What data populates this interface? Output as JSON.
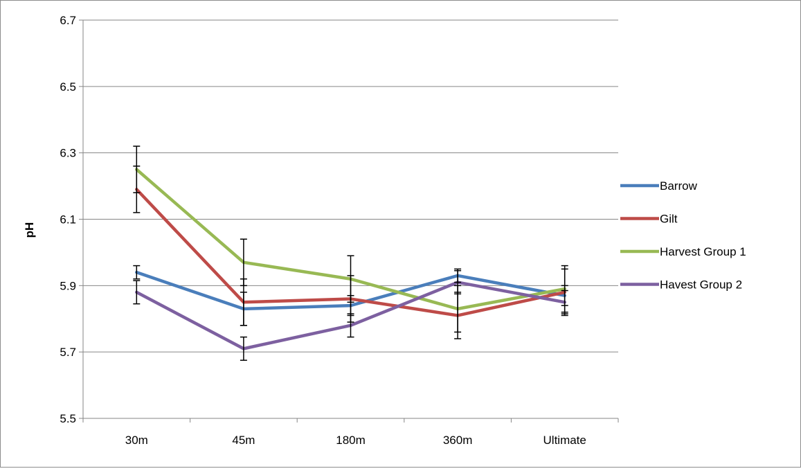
{
  "chart_data": {
    "type": "line",
    "title": "",
    "xlabel": "",
    "ylabel": "pH",
    "ylim": [
      5.5,
      6.7
    ],
    "yticks": [
      "5.5",
      "5.7",
      "5.9",
      "6.1",
      "6.3",
      "6.5",
      "6.7"
    ],
    "categories": [
      "30m",
      "45m",
      "180m",
      "360m",
      "Ultimate"
    ],
    "grid": true,
    "legend_position": "right",
    "error_bars": true,
    "series": [
      {
        "name": "Barrow",
        "color": "#4a7ebb",
        "values": [
          5.94,
          5.83,
          5.84,
          5.93,
          5.87
        ],
        "errors": [
          0.02,
          0.05,
          0.03,
          0.02,
          0.03
        ]
      },
      {
        "name": "Gilt",
        "color": "#be4b48",
        "values": [
          6.19,
          5.85,
          5.86,
          5.81,
          5.88
        ],
        "errors": [
          0.07,
          0.07,
          0.07,
          0.07,
          0.07
        ]
      },
      {
        "name": "Harvest Group 1",
        "color": "#98b954",
        "values": [
          6.25,
          5.97,
          5.92,
          5.83,
          5.89
        ],
        "errors": [
          0.07,
          0.07,
          0.07,
          0.07,
          0.07
        ]
      },
      {
        "name": "Havest Group 2",
        "color": "#7d60a0",
        "values": [
          5.88,
          5.71,
          5.78,
          5.91,
          5.85
        ],
        "errors": [
          0.035,
          0.035,
          0.035,
          0.035,
          0.035
        ]
      }
    ]
  }
}
